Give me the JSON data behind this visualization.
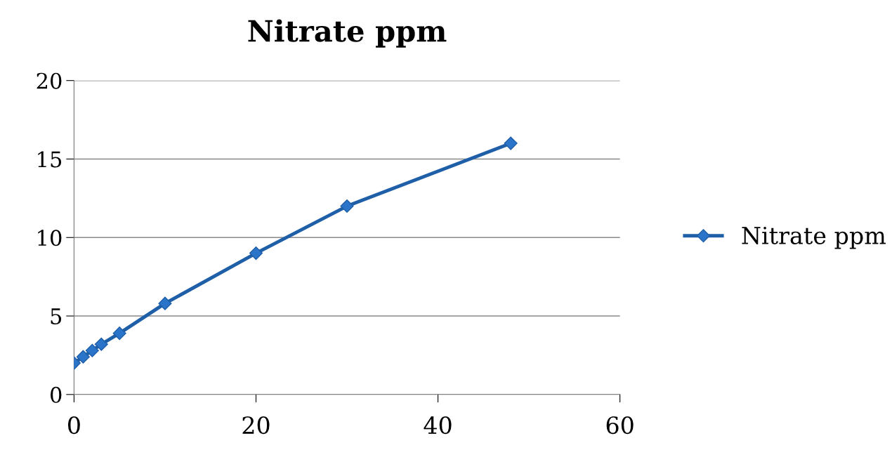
{
  "chart_data": {
    "type": "line",
    "title": "Nitrate ppm",
    "x": [
      0,
      1,
      2,
      3,
      5,
      10,
      20,
      30,
      48
    ],
    "series": [
      {
        "name": "Nitrate ppm",
        "color": "#1f5fa8",
        "values": [
          2.0,
          2.4,
          2.8,
          3.2,
          3.9,
          5.8,
          9.0,
          12.0,
          16.0
        ]
      }
    ],
    "xlim": [
      0,
      60
    ],
    "xticks": [
      0,
      20,
      40,
      60
    ],
    "ylim": [
      0,
      20
    ],
    "yticks": [
      0,
      5,
      10,
      15,
      20
    ],
    "grid": "y",
    "legend": "right",
    "marker": "diamond",
    "line_style": "solid"
  }
}
